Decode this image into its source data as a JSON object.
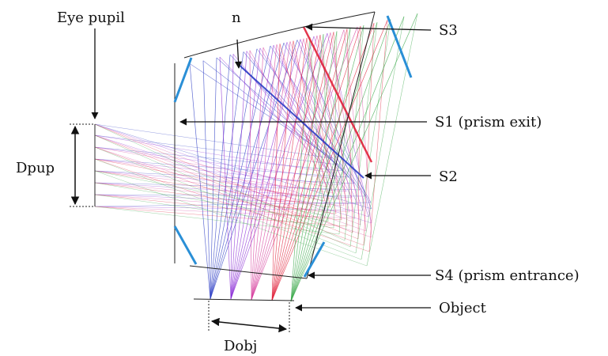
{
  "labels": {
    "eye_pupil": "Eye pupil",
    "n": "n",
    "s3": "S3",
    "s1": "S1 (prism exit)",
    "s2": "S2",
    "dpup": "Dpup",
    "s4": "S4 (prism entrance)",
    "object": "Object",
    "dobj": "Dobj"
  },
  "colors": {
    "prism_outline": "#222222",
    "prism_facet": "#2a8fd6",
    "ray_series": [
      "#2b3cc4",
      "#8a2bd6",
      "#d63c9c",
      "#e0203a",
      "#3aa84a"
    ]
  }
}
